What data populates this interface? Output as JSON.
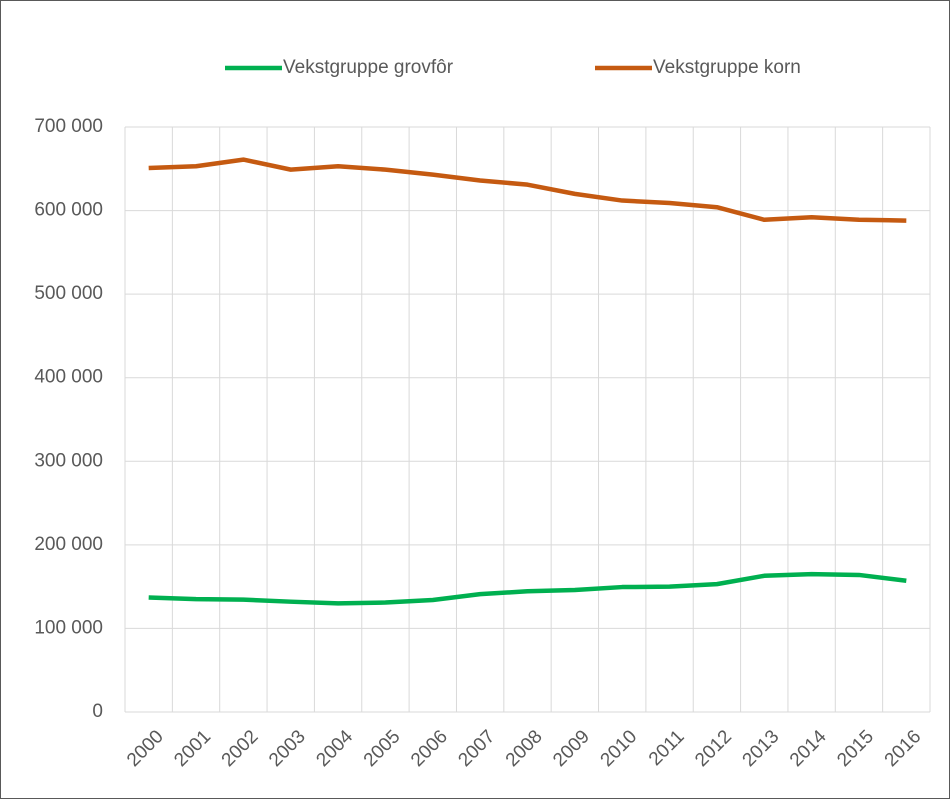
{
  "chart_data": {
    "type": "line",
    "categories": [
      "2000",
      "2001",
      "2002",
      "2003",
      "2004",
      "2005",
      "2006",
      "2007",
      "2008",
      "2009",
      "2010",
      "2011",
      "2012",
      "2013",
      "2014",
      "2015",
      "2016"
    ],
    "series": [
      {
        "name": "Vekstgruppe grovfôr",
        "color": "#00b050",
        "values": [
          137000,
          135000,
          134500,
          132000,
          130000,
          131000,
          134000,
          141000,
          144500,
          146000,
          149500,
          150000,
          153000,
          163000,
          165000,
          164000,
          157000
        ]
      },
      {
        "name": "Vekstgruppe korn",
        "color": "#c55a11",
        "values": [
          651000,
          653000,
          661000,
          649000,
          653000,
          649000,
          643000,
          636000,
          631000,
          620000,
          612000,
          609000,
          604000,
          589000,
          592000,
          589000,
          588000
        ]
      }
    ],
    "ylim": [
      0,
      700000
    ],
    "yticks": [
      0,
      {
        "value": 100000,
        "label": "100 000"
      },
      {
        "value": 200000,
        "label": "200 000"
      },
      {
        "value": 300000,
        "label": "300 000"
      },
      {
        "value": 400000,
        "label": "400 000"
      },
      {
        "value": 500000,
        "label": "500 000"
      },
      {
        "value": 600000,
        "label": "600 000"
      },
      {
        "value": 700000,
        "label": "700 000"
      }
    ],
    "grid": true,
    "legend": "top"
  }
}
